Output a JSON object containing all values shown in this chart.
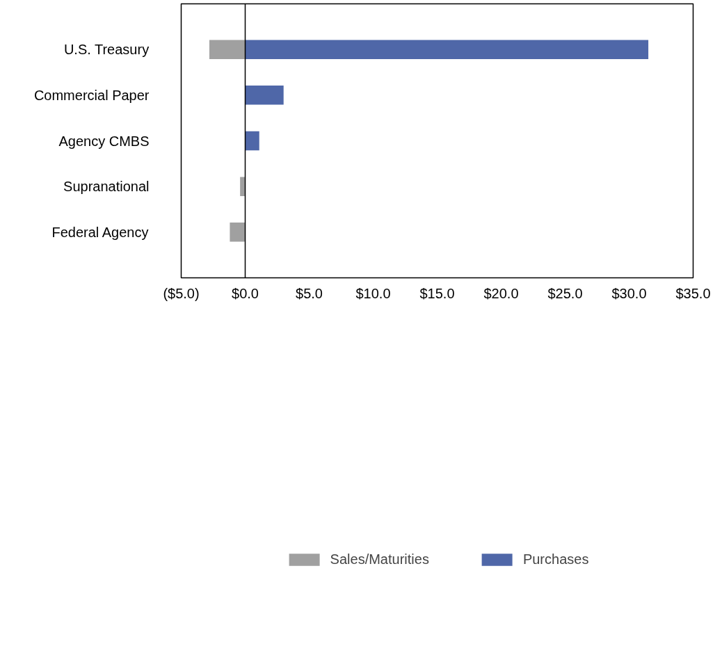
{
  "chart_data": {
    "type": "bar",
    "orientation": "horizontal",
    "categories": [
      "U.S. Treasury",
      "Commercial Paper",
      "Agency CMBS",
      "Supranational",
      "Federal Agency"
    ],
    "series": [
      {
        "name": "Sales/Maturities",
        "color": "#a0a0a0",
        "values": [
          -2.8,
          null,
          null,
          -0.4,
          -1.2
        ]
      },
      {
        "name": "Purchases",
        "color": "#4f67a8",
        "values": [
          31.5,
          3.0,
          1.1,
          null,
          null
        ]
      }
    ],
    "xlim": [
      -5,
      35
    ],
    "xticks": [
      {
        "value": -5,
        "label": "($5.0)"
      },
      {
        "value": 0,
        "label": "$0.0"
      },
      {
        "value": 5,
        "label": "$5.0"
      },
      {
        "value": 10,
        "label": "$10.0"
      },
      {
        "value": 15,
        "label": "$15.0"
      },
      {
        "value": 20,
        "label": "$20.0"
      },
      {
        "value": 25,
        "label": "$25.0"
      },
      {
        "value": 30,
        "label": "$30.0"
      },
      {
        "value": 35,
        "label": "$35.0"
      }
    ],
    "ref_lines": [
      {
        "axis": "x",
        "value": 0,
        "color": "#000000"
      }
    ],
    "grid": false,
    "legend": "bottom"
  }
}
